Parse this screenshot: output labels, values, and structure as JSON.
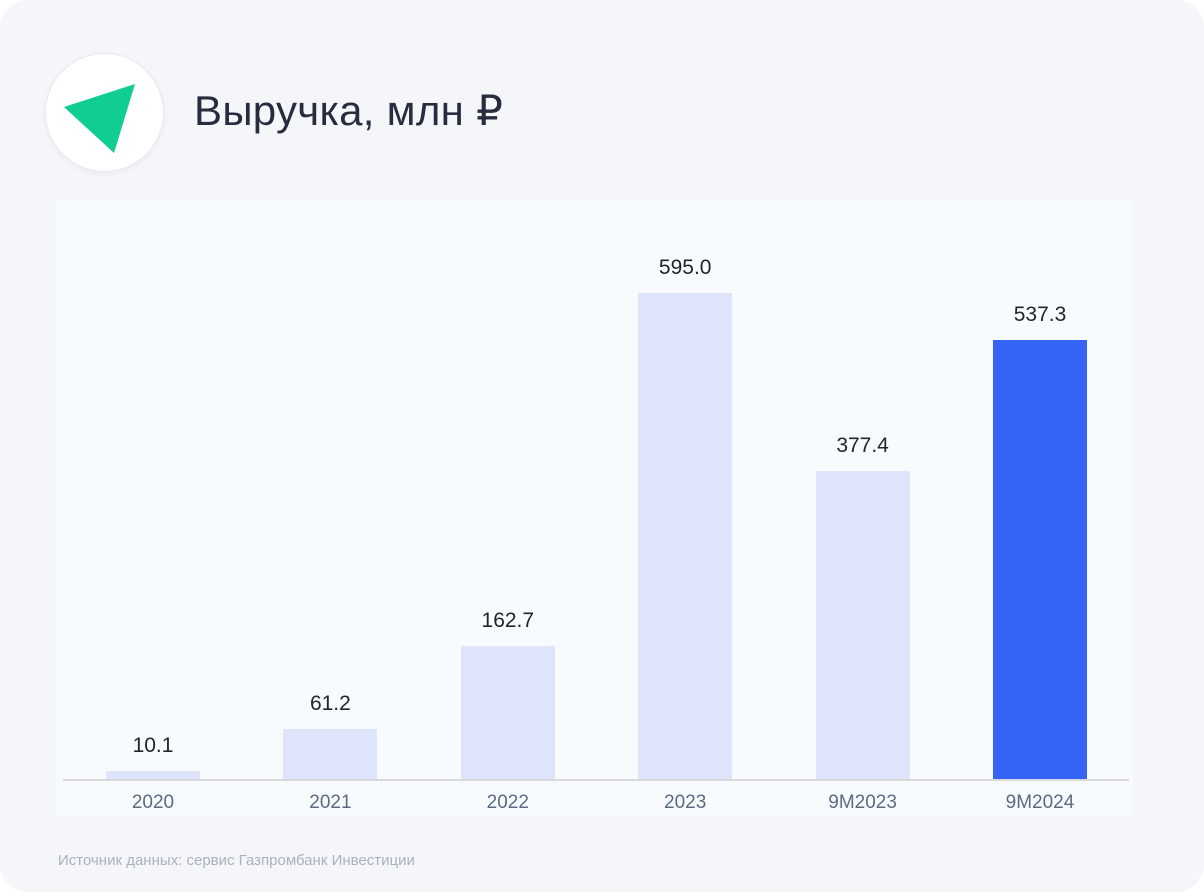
{
  "header": {
    "title": "Выручка, млн ₽",
    "logo_icon": "green-triangle-brand-icon"
  },
  "footer": {
    "source": "Источник данных: сервис Газпромбанк Инвестиции"
  },
  "colors": {
    "page_background": "#f5f6fa",
    "chart_background": "#f8fbfd",
    "bar_default": "#dee4fa",
    "bar_highlight": "#3565f6",
    "brand_green": "#10cd92",
    "title_text": "#272d3f",
    "value_label_text": "#22252e",
    "tick_label_text": "#5c6b82",
    "axis_line": "#d7d9db",
    "source_text": "#a9b1bd"
  },
  "chart_data": {
    "type": "bar",
    "title": "Выручка, млн ₽",
    "xlabel": "",
    "ylabel": "Выручка, млн ₽",
    "categories": [
      "2020",
      "2021",
      "2022",
      "2023",
      "9M2023",
      "9M2024"
    ],
    "values": [
      10.1,
      61.2,
      162.7,
      595.0,
      377.4,
      537.3
    ],
    "value_labels": [
      "10.1",
      "61.2",
      "162.7",
      "595.0",
      "377.4",
      "537.3"
    ],
    "series": [
      {
        "name": "Выручка",
        "values": [
          10.1,
          61.2,
          162.7,
          595.0,
          377.4,
          537.3
        ]
      }
    ],
    "highlight_index": 5,
    "bar_colors": [
      "#dee4fa",
      "#dee4fa",
      "#dee4fa",
      "#dee4fa",
      "#dee4fa",
      "#3565f6"
    ],
    "ylim": [
      0,
      710
    ],
    "grid": false,
    "legend": false,
    "value_labels_shown": true
  }
}
